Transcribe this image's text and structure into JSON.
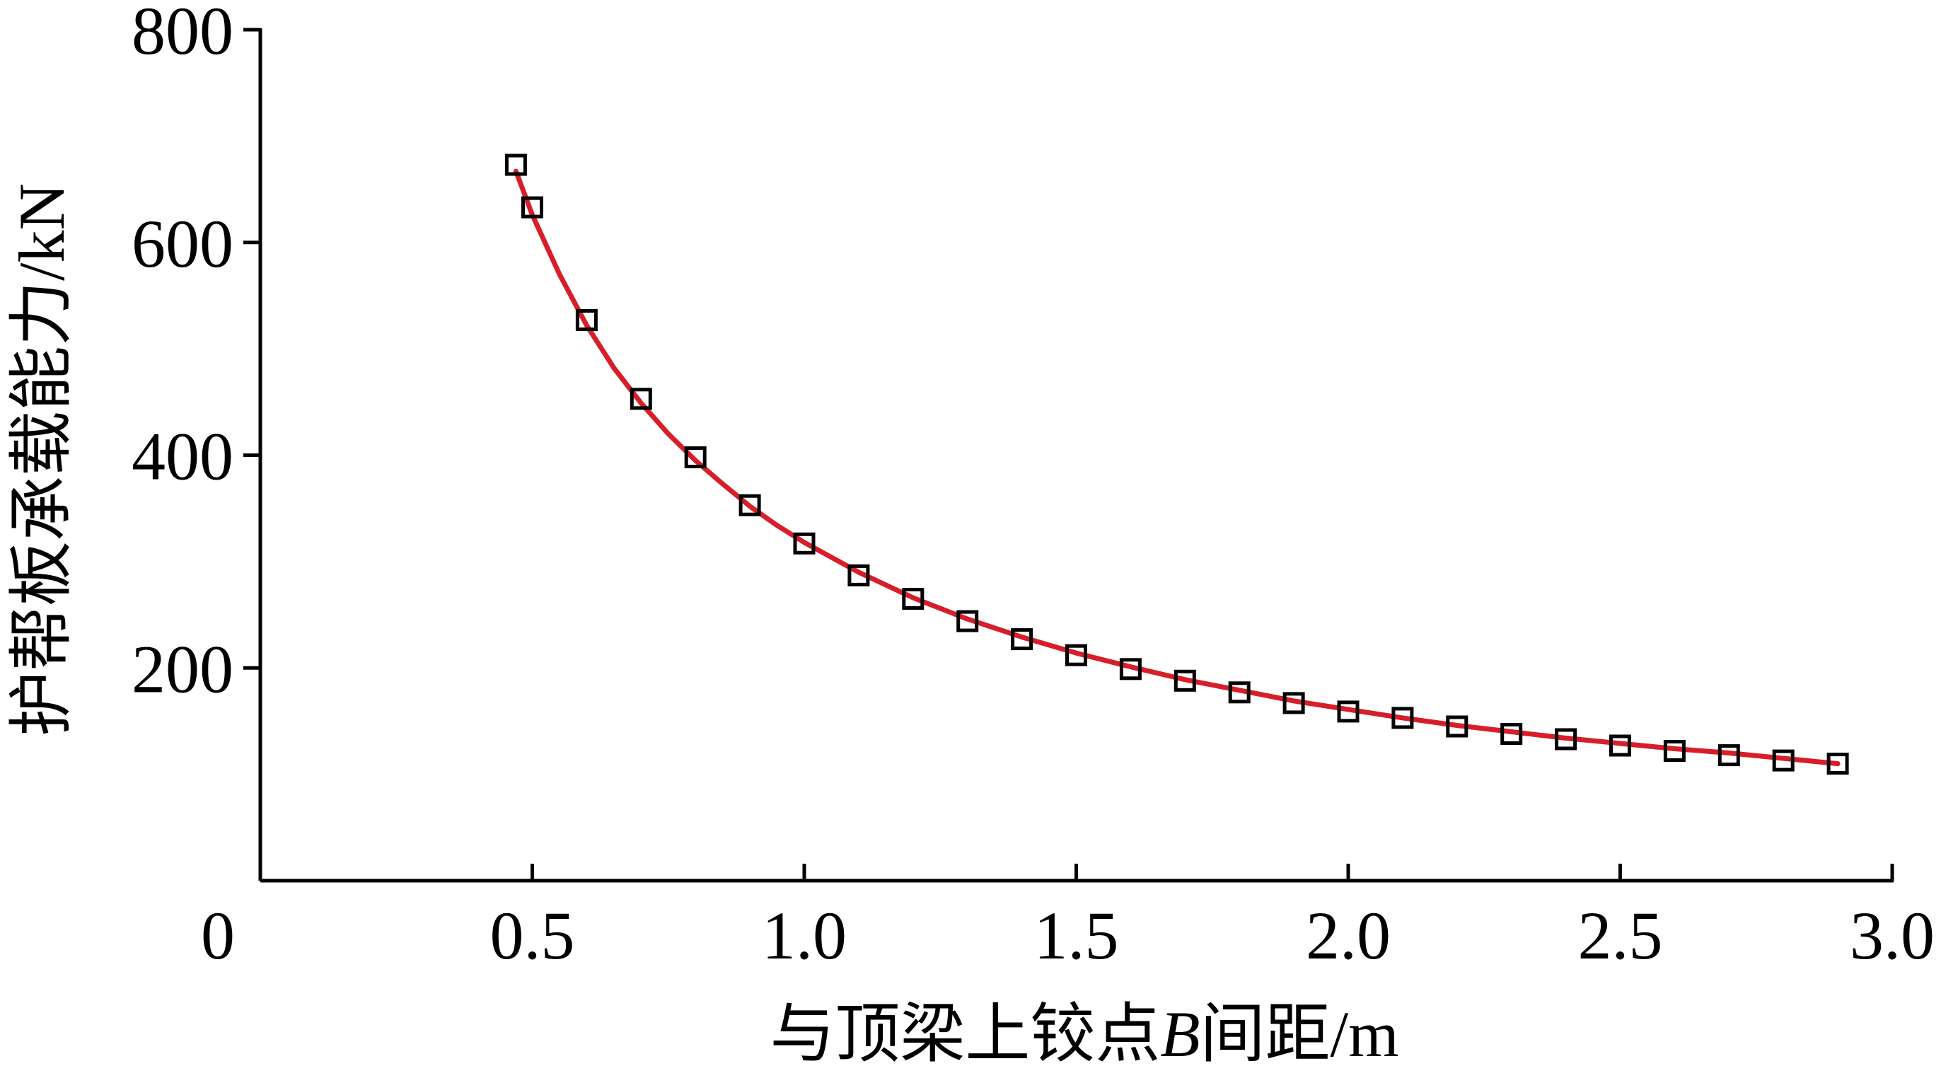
{
  "chart_data": {
    "type": "scatter",
    "title": "",
    "xlabel_parts": [
      "与顶梁上铰点",
      "B",
      "间距/m"
    ],
    "ylabel": "护帮板承载能力/kN",
    "xlim": [
      0,
      3.0
    ],
    "ylim": [
      0,
      800
    ],
    "x_ticks": [
      0,
      0.5,
      1.0,
      1.5,
      2.0,
      2.5,
      3.0
    ],
    "x_tick_labels": [
      "0",
      "0.5",
      "1.0",
      "1.5",
      "2.0",
      "2.5",
      "3.0"
    ],
    "y_ticks": [
      200,
      400,
      600,
      800
    ],
    "y_tick_labels": [
      "200",
      "400",
      "600",
      "800"
    ],
    "grid": false,
    "legend": "none",
    "colors": {
      "fit_line": "#d81e2a",
      "markers": "#000000",
      "axes": "#000000"
    },
    "series": [
      {
        "kind": "markers",
        "marker": "square",
        "x": [
          0.47,
          0.5,
          0.6,
          0.7,
          0.8,
          0.9,
          1.0,
          1.1,
          1.2,
          1.3,
          1.4,
          1.5,
          1.6,
          1.7,
          1.8,
          1.9,
          2.0,
          2.1,
          2.2,
          2.3,
          2.4,
          2.5,
          2.6,
          2.7,
          2.8,
          2.9
        ],
        "y": [
          673,
          633,
          527,
          453,
          398,
          353,
          317,
          287,
          265,
          244,
          227,
          212,
          199,
          188,
          177,
          167,
          159,
          153,
          145,
          138,
          133,
          127,
          122,
          118,
          113,
          110
        ]
      },
      {
        "kind": "line",
        "x": [
          0.47,
          0.5,
          0.55,
          0.6,
          0.65,
          0.7,
          0.75,
          0.8,
          0.85,
          0.9,
          0.95,
          1.0,
          1.1,
          1.2,
          1.3,
          1.4,
          1.5,
          1.6,
          1.7,
          1.8,
          1.9,
          2.0,
          2.1,
          2.2,
          2.3,
          2.4,
          2.5,
          2.6,
          2.7,
          2.8,
          2.9
        ],
        "y": [
          667,
          626,
          570,
          522,
          482,
          449,
          420,
          395,
          373,
          352,
          334,
          318,
          290,
          266,
          246,
          229,
          214,
          201,
          189,
          179,
          169,
          161,
          153,
          146,
          140,
          134,
          129,
          124,
          120,
          115,
          110
        ]
      }
    ]
  }
}
